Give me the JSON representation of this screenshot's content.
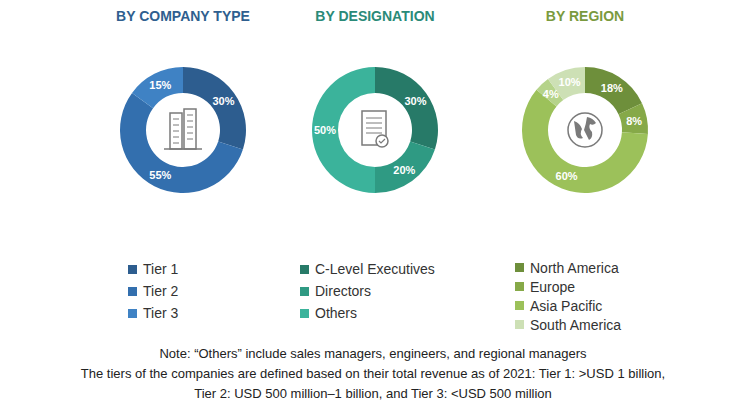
{
  "chart_data": [
    {
      "type": "pie",
      "title": "BY COMPANY TYPE",
      "categories": [
        "Tier 1",
        "Tier 2",
        "Tier 3"
      ],
      "values": [
        30,
        55,
        15
      ],
      "value_labels": [
        "30%",
        "55%",
        "15%"
      ],
      "colors": [
        "#2d5d8f",
        "#336fae",
        "#3f82c4"
      ],
      "data_labels": true
    },
    {
      "type": "pie",
      "title": "BY DESIGNATION",
      "categories": [
        "C-Level Executives",
        "Directors",
        "Others"
      ],
      "values": [
        30,
        20,
        50
      ],
      "value_labels": [
        "30%",
        "20%",
        "50%"
      ],
      "colors": [
        "#277a68",
        "#2f9a83",
        "#3bb39b"
      ],
      "data_labels": true
    },
    {
      "type": "pie",
      "title": "BY REGION",
      "categories": [
        "North America",
        "Europe",
        "Asia Pacific",
        null,
        "South America"
      ],
      "values": [
        18,
        8,
        60,
        4,
        10
      ],
      "value_labels": [
        "18%",
        "8%",
        "60%",
        "4%",
        "10%"
      ],
      "colors": [
        "#6e8f3b",
        "#86a948",
        "#9cc15a",
        "#b5d38a",
        "#cde0b5"
      ],
      "data_labels": true
    }
  ],
  "notes": [
    "Note: “Others” include sales managers, engineers, and regional managers",
    "The tiers of the companies are defined based on their total revenue as of 2021: Tier 1: >USD 1 billion,",
    "Tier 2: USD 500 million–1 billion, and Tier 3: <USD 500 million"
  ]
}
